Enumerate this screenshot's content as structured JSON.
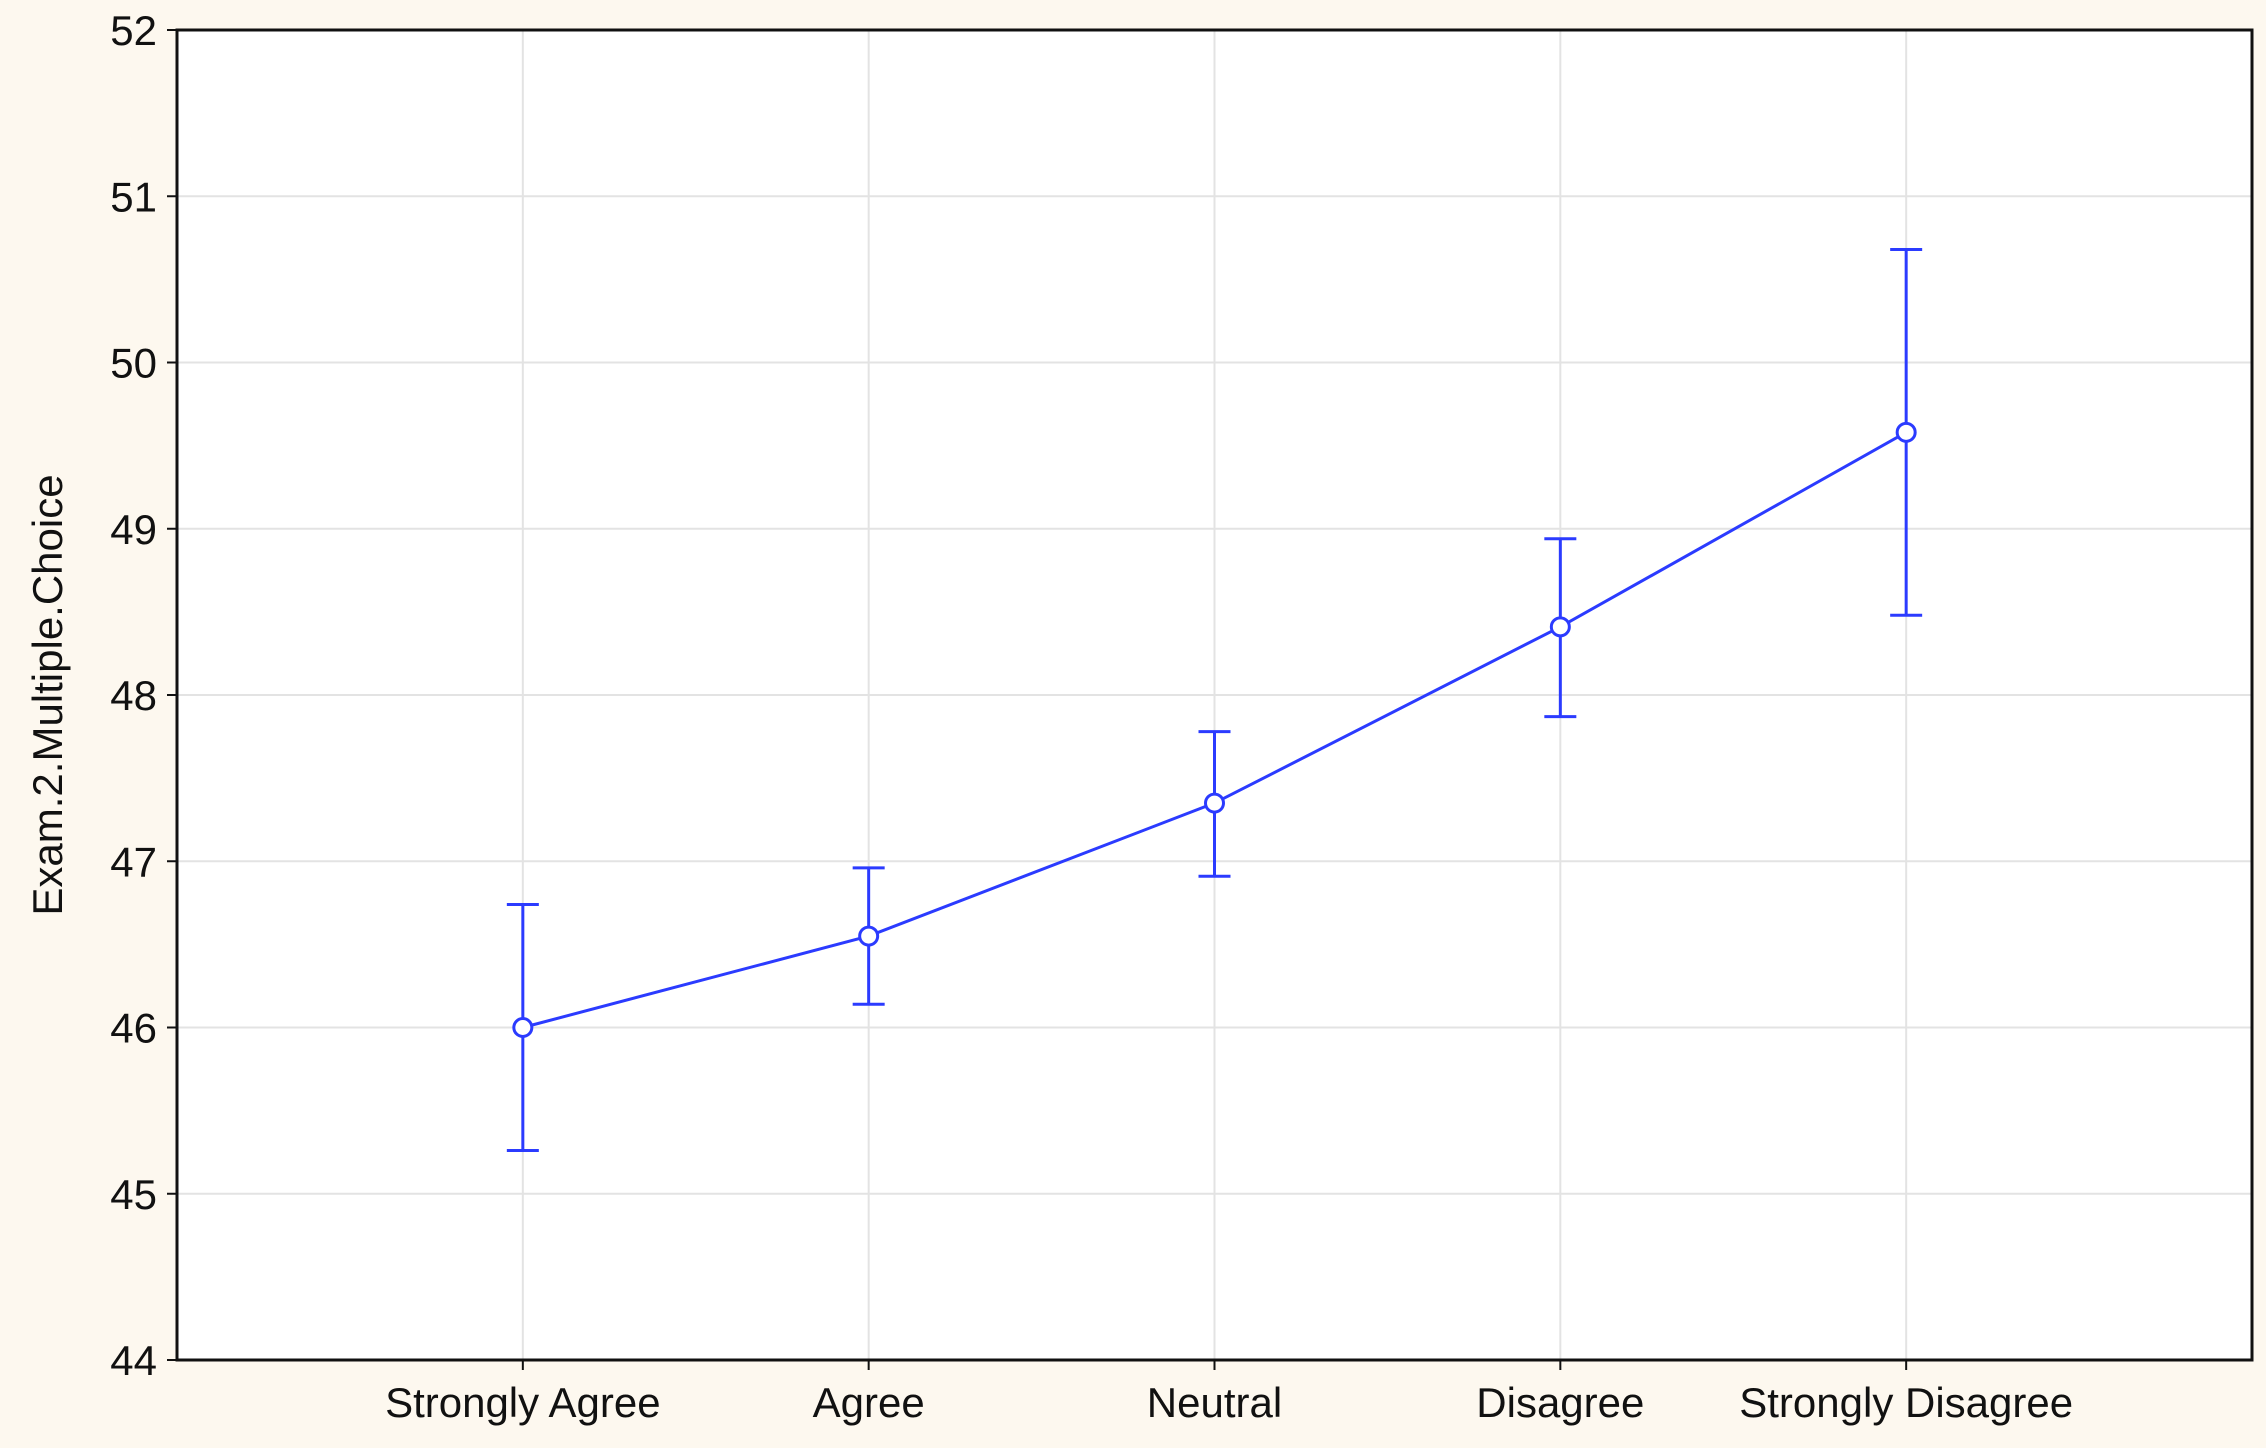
{
  "chart_data": {
    "type": "line",
    "title": "",
    "xlabel": "",
    "ylabel": "Exam.2.Multiple.Choice",
    "categories": [
      "Strongly Agree",
      "Agree",
      "Neutral",
      "Disagree",
      "Strongly Disagree"
    ],
    "series": [
      {
        "values": [
          46.0,
          46.55,
          47.35,
          48.41,
          49.58
        ],
        "lower": [
          45.26,
          46.14,
          46.91,
          47.87,
          48.48
        ],
        "upper": [
          46.74,
          46.96,
          47.78,
          48.94,
          50.68
        ],
        "color": "#2b3bff",
        "marker": "open-circle",
        "error_bars": true
      }
    ],
    "ylim": [
      44,
      52
    ],
    "yticks": [
      "44",
      "45",
      "46",
      "47",
      "48",
      "49",
      "50",
      "51",
      "52"
    ],
    "grid": true,
    "legend": "none"
  },
  "colors": {
    "background": "#fdf8ef",
    "plot_background": "#ffffff",
    "grid": "#e3e3e3",
    "axis": "#111111",
    "series": "#2b3bff"
  }
}
